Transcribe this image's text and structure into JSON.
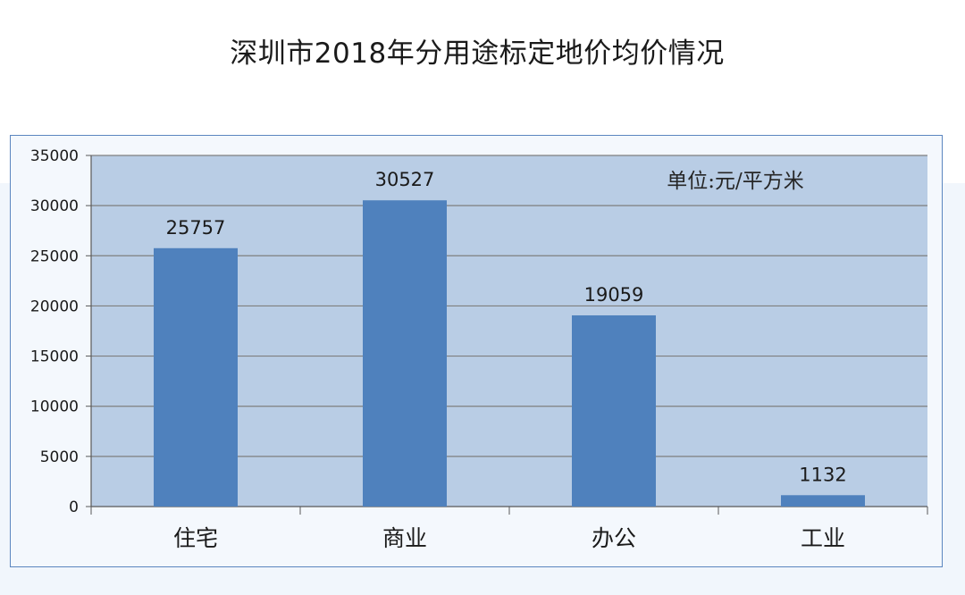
{
  "chart_data": {
    "type": "bar",
    "title": "深圳市2018年分用途标定地价均价情况",
    "unit_note": "单位:元/平方米",
    "categories": [
      "住宅",
      "商业",
      "办公",
      "工业"
    ],
    "values": [
      25757,
      30527,
      19059,
      1132
    ],
    "ylim": [
      0,
      35000
    ],
    "yticks": [
      0,
      5000,
      10000,
      15000,
      20000,
      25000,
      30000,
      35000
    ],
    "xlabel": "",
    "ylabel": "",
    "grid": true,
    "legend": "none",
    "colors": {
      "bar": "#4f81bd",
      "plot_bg": "#b9cde5",
      "grid": "#7f7f7f",
      "frame": "#5b86c0"
    }
  }
}
